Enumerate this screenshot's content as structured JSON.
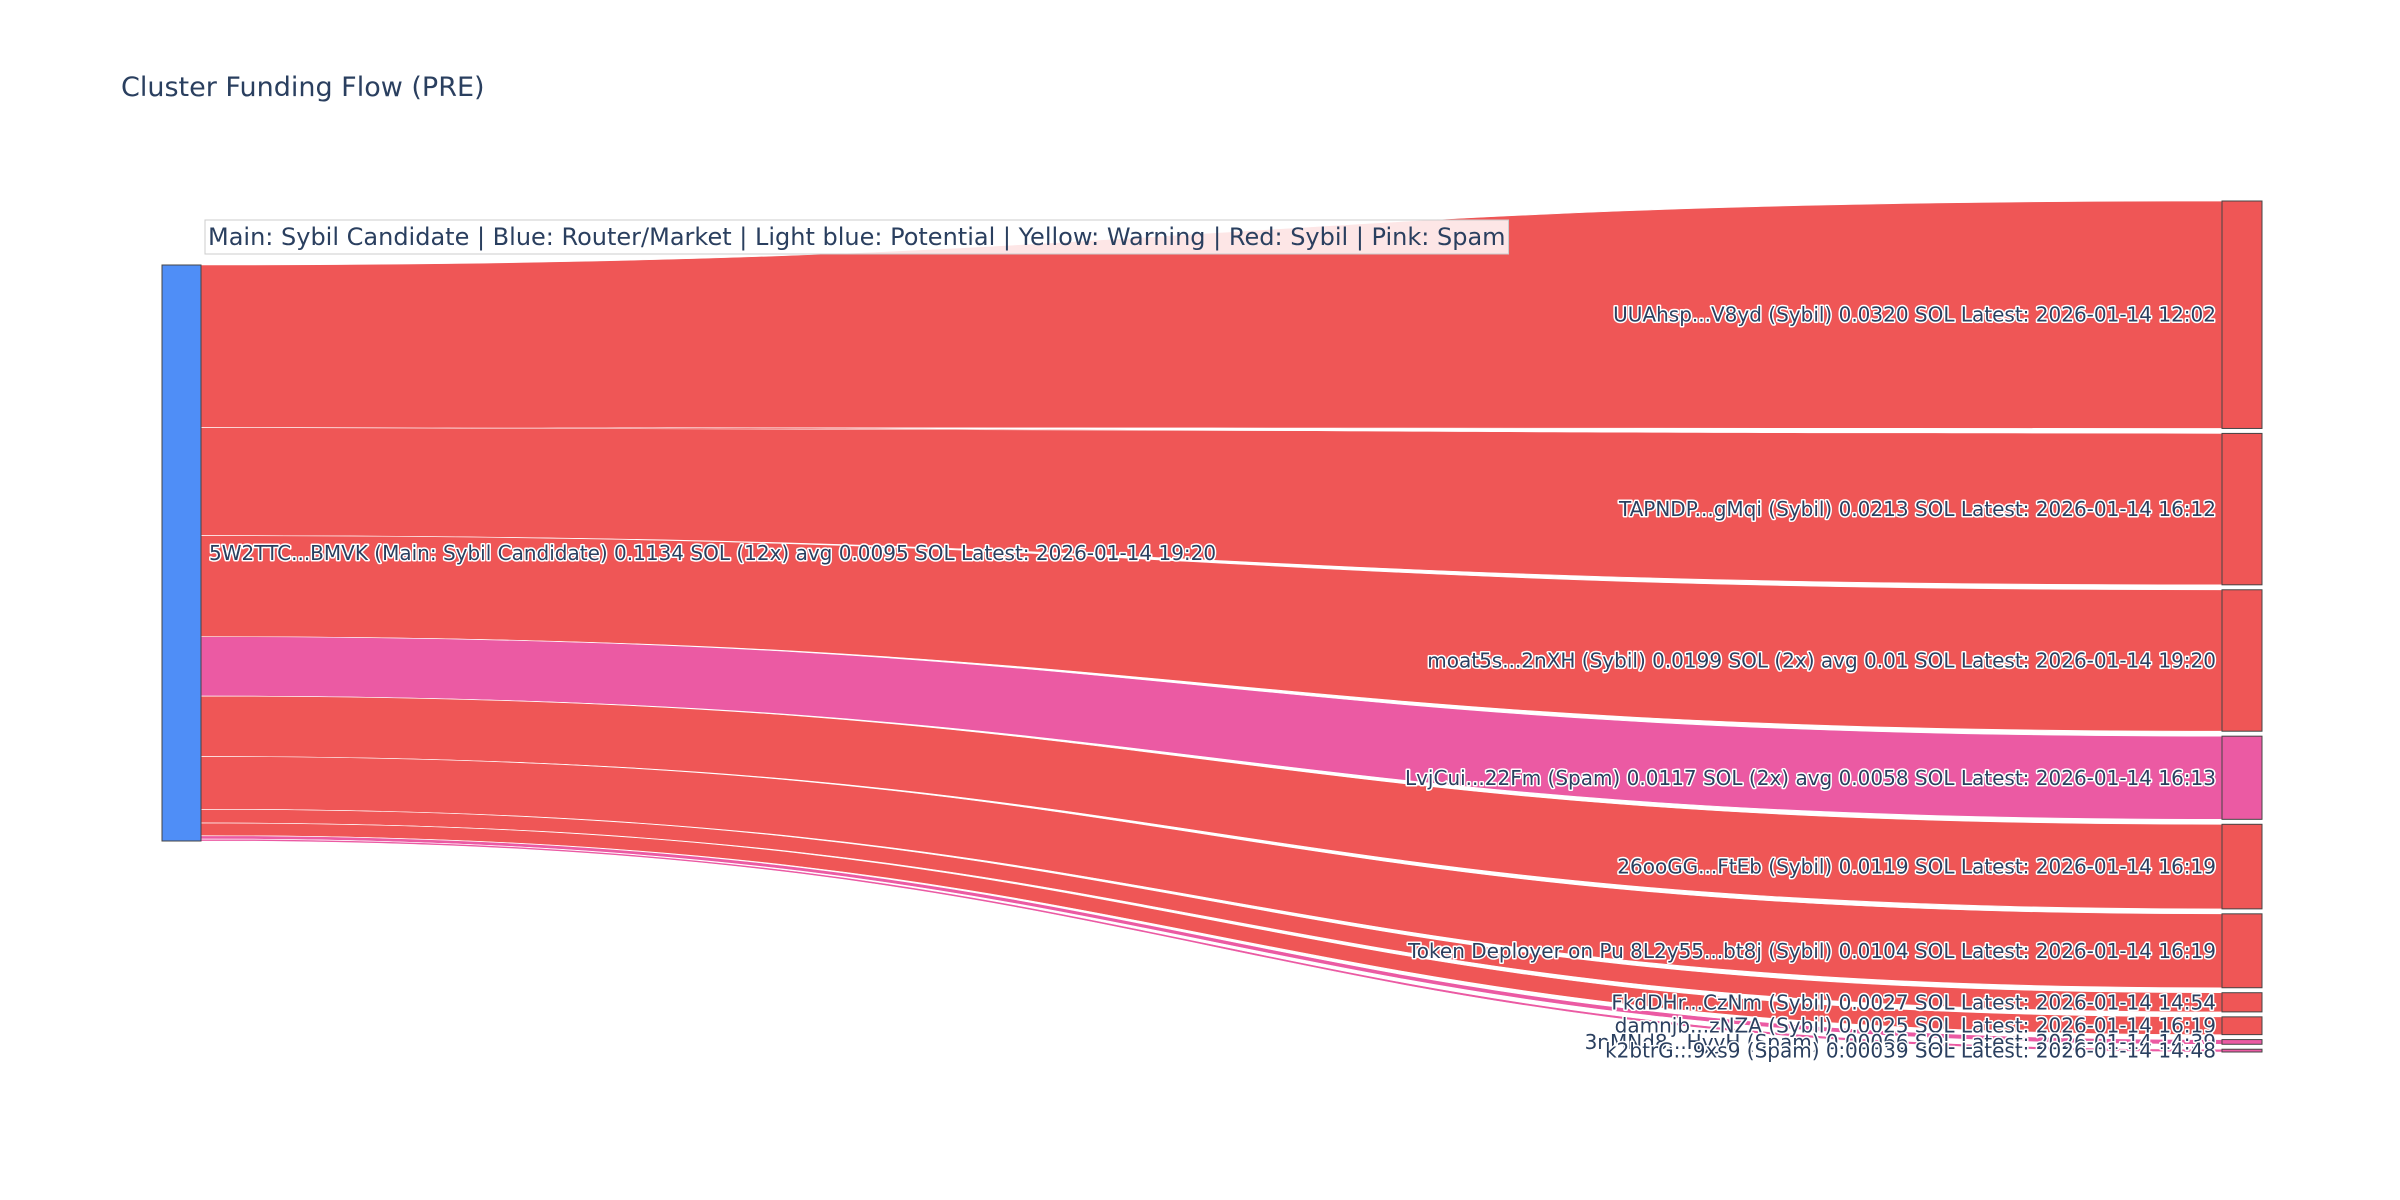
{
  "chart_data": {
    "type": "sankey",
    "title": "Cluster Funding Flow (PRE)",
    "annotation": "Main: Sybil Candidate  |  Blue: Router/Market | Light blue: Potential | Yellow: Warning | Red: Sybil | Pink: Spam",
    "colors": {
      "main": "#4f8ef7",
      "sybil": "#ef5656",
      "spam": "#eb5aa3",
      "node_border": "#444444"
    },
    "source": {
      "label": "5W2TTC...BMVK (Main: Sybil Candidate) 0.1134 SOL (12x) avg 0.0095 SOL Latest: 2026-01-14 19:20",
      "value": 0.1134,
      "category": "main"
    },
    "targets": [
      {
        "label": "UUAhsp...V8yd (Sybil) 0.0320 SOL Latest: 2026-01-14 12:02",
        "value": 0.032,
        "category": "sybil"
      },
      {
        "label": "TAPNDP...gMqi (Sybil) 0.0213 SOL Latest: 2026-01-14 16:12",
        "value": 0.0213,
        "category": "sybil"
      },
      {
        "label": "moat5s...2nXH (Sybil) 0.0199 SOL (2x) avg 0.01 SOL Latest: 2026-01-14 19:20",
        "value": 0.0199,
        "category": "sybil"
      },
      {
        "label": "LvjCui...22Fm (Spam) 0.0117 SOL (2x) avg 0.0058 SOL Latest: 2026-01-14 16:13",
        "value": 0.0117,
        "category": "spam"
      },
      {
        "label": "26ooGG...FtEb (Sybil) 0.0119 SOL Latest: 2026-01-14 16:19",
        "value": 0.0119,
        "category": "sybil"
      },
      {
        "label": "Token Deployer on Pu 8L2y55...bt8j (Sybil) 0.0104 SOL Latest: 2026-01-14 16:19",
        "value": 0.0104,
        "category": "sybil"
      },
      {
        "label": "FkdDHr...CzNm (Sybil) 0.0027 SOL Latest: 2026-01-14 14:54",
        "value": 0.0027,
        "category": "sybil"
      },
      {
        "label": "damnjb...zNZA (Sybil) 0.0025 SOL Latest: 2026-01-14 16:19",
        "value": 0.0025,
        "category": "sybil"
      },
      {
        "label": "3nMNd8...HyyH (Spam) 0.00066 SOL Latest: 2026-01-14 14:39",
        "value": 0.00066,
        "category": "spam"
      },
      {
        "label": "k2btrG...9xs9 (Spam) 0.00039 SOL Latest: 2026-01-14 14:48",
        "value": 0.00039,
        "category": "spam"
      }
    ]
  }
}
